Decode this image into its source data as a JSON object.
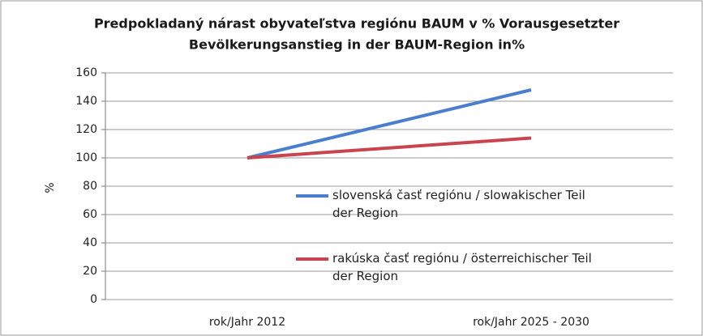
{
  "chart_data": {
    "type": "line",
    "title": [
      "Predpokladaný nárast obyvateľstva regiónu BAUM v % Vorausgesetzter",
      "Bevölkerungsanstieg in der BAUM-Region in%"
    ],
    "y_label": "%",
    "categories": [
      "rok/Jahr 2012",
      "rok/Jahr 2025 - 2030"
    ],
    "series": [
      {
        "name": "slovenská časť regiónu / slowakischer Teil der Region",
        "color": "#4a7fd0",
        "values": [
          100,
          148
        ]
      },
      {
        "name": "rakúska časť regiónu / österreichischer Teil der Region",
        "color": "#c9444f",
        "values": [
          100,
          114
        ]
      }
    ],
    "ylim": [
      0,
      160
    ],
    "yticks": [
      0,
      20,
      40,
      60,
      80,
      100,
      120,
      140,
      160
    ],
    "grid": true
  }
}
